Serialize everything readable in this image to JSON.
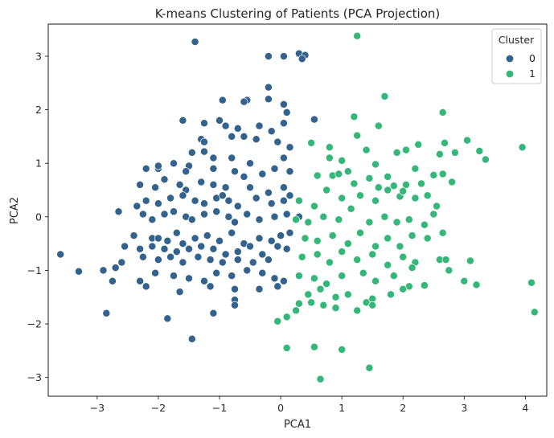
{
  "chart_data": {
    "type": "scatter",
    "title": "K-means Clustering of Patients (PCA Projection)",
    "xlabel": "PCA1",
    "ylabel": "PCA2",
    "xlim": [
      -3.8,
      4.35
    ],
    "ylim": [
      -3.35,
      3.6
    ],
    "xticks": [
      -3,
      -2,
      -1,
      0,
      1,
      2,
      3,
      4
    ],
    "yticks": [
      -3,
      -2,
      -1,
      0,
      1,
      2,
      3
    ],
    "xtick_labels": [
      "−3",
      "−2",
      "−1",
      "0",
      "1",
      "2",
      "3",
      "4"
    ],
    "ytick_labels": [
      "−3",
      "−2",
      "−1",
      "0",
      "1",
      "2",
      "3"
    ],
    "grid": false,
    "legend": {
      "title": "Cluster",
      "placement": "top-right"
    },
    "series": [
      {
        "name": "0",
        "color": "#33638d",
        "points": [
          [
            -1.4,
            3.27
          ],
          [
            0.3,
            3.05
          ],
          [
            -0.2,
            3.0
          ],
          [
            0.05,
            3.0
          ],
          [
            0.4,
            3.02
          ],
          [
            0.35,
            2.95
          ],
          [
            -0.55,
            2.18
          ],
          [
            -0.6,
            2.15
          ],
          [
            -0.95,
            2.18
          ],
          [
            -0.2,
            2.42
          ],
          [
            -0.2,
            2.2
          ],
          [
            0.05,
            2.1
          ],
          [
            0.1,
            1.95
          ],
          [
            0.55,
            1.82
          ],
          [
            0.05,
            1.75
          ],
          [
            -1.6,
            1.8
          ],
          [
            -1.25,
            1.75
          ],
          [
            -1.0,
            1.8
          ],
          [
            -0.9,
            1.7
          ],
          [
            -0.7,
            1.65
          ],
          [
            -0.35,
            1.7
          ],
          [
            -0.15,
            1.6
          ],
          [
            -1.3,
            1.45
          ],
          [
            -1.25,
            1.4
          ],
          [
            -0.8,
            1.5
          ],
          [
            -0.6,
            1.5
          ],
          [
            -0.4,
            1.45
          ],
          [
            -0.05,
            1.4
          ],
          [
            0.15,
            1.3
          ],
          [
            0.05,
            1.1
          ],
          [
            -1.45,
            1.2
          ],
          [
            -1.25,
            1.22
          ],
          [
            -1.1,
            1.1
          ],
          [
            -0.8,
            1.1
          ],
          [
            -0.5,
            1.0
          ],
          [
            -1.5,
            0.95
          ],
          [
            -2.2,
            0.9
          ],
          [
            -2.0,
            0.9
          ],
          [
            -2.0,
            0.95
          ],
          [
            -1.75,
            1.0
          ],
          [
            -1.55,
            0.85
          ],
          [
            -1.1,
            0.9
          ],
          [
            -0.75,
            0.85
          ],
          [
            -0.3,
            0.8
          ],
          [
            -0.1,
            0.9
          ],
          [
            0.15,
            0.85
          ],
          [
            -2.3,
            0.6
          ],
          [
            -2.05,
            0.55
          ],
          [
            -1.9,
            0.7
          ],
          [
            -1.65,
            0.6
          ],
          [
            -1.55,
            0.5
          ],
          [
            -1.3,
            0.65
          ],
          [
            -1.1,
            0.6
          ],
          [
            -0.9,
            0.55
          ],
          [
            -0.6,
            0.75
          ],
          [
            -0.5,
            0.55
          ],
          [
            -0.2,
            0.45
          ],
          [
            0.05,
            0.55
          ],
          [
            -2.35,
            0.2
          ],
          [
            -2.2,
            0.3
          ],
          [
            -2.0,
            0.25
          ],
          [
            -1.8,
            0.35
          ],
          [
            -1.6,
            0.4
          ],
          [
            -1.4,
            0.3
          ],
          [
            -1.25,
            0.25
          ],
          [
            -1.05,
            0.35
          ],
          [
            -0.95,
            0.4
          ],
          [
            -0.85,
            0.3
          ],
          [
            -0.7,
            0.2
          ],
          [
            -0.4,
            0.35
          ],
          [
            -0.15,
            0.25
          ],
          [
            0.05,
            0.3
          ],
          [
            0.15,
            0.4
          ],
          [
            -2.65,
            0.1
          ],
          [
            -2.25,
            0.05
          ],
          [
            -2.1,
            -0.05
          ],
          [
            -1.9,
            0.05
          ],
          [
            -1.75,
            0.1
          ],
          [
            -1.55,
            0.0
          ],
          [
            -1.45,
            -0.05
          ],
          [
            -1.25,
            0.05
          ],
          [
            -1.05,
            0.1
          ],
          [
            -0.85,
            0.0
          ],
          [
            -0.75,
            -0.1
          ],
          [
            -0.55,
            0.05
          ],
          [
            -0.35,
            -0.05
          ],
          [
            -0.1,
            0.0
          ],
          [
            0.1,
            0.05
          ],
          [
            0.3,
            0.0
          ],
          [
            -2.4,
            -0.35
          ],
          [
            -2.1,
            -0.4
          ],
          [
            -2.0,
            -0.4
          ],
          [
            -1.85,
            -0.45
          ],
          [
            -1.7,
            -0.3
          ],
          [
            -1.6,
            -0.5
          ],
          [
            -1.4,
            -0.4
          ],
          [
            -1.2,
            -0.35
          ],
          [
            -1.0,
            -0.45
          ],
          [
            -0.8,
            -0.3
          ],
          [
            -0.6,
            -0.5
          ],
          [
            -0.35,
            -0.4
          ],
          [
            -0.15,
            -0.45
          ],
          [
            0.0,
            -0.35
          ],
          [
            0.15,
            -0.3
          ],
          [
            -2.55,
            -0.55
          ],
          [
            -2.3,
            -0.6
          ],
          [
            -2.1,
            -0.55
          ],
          [
            -1.9,
            -0.6
          ],
          [
            -1.7,
            -0.65
          ],
          [
            -1.5,
            -0.6
          ],
          [
            -1.3,
            -0.55
          ],
          [
            -1.1,
            -0.6
          ],
          [
            -0.9,
            -0.7
          ],
          [
            -0.7,
            -0.65
          ],
          [
            -0.5,
            -0.55
          ],
          [
            -0.3,
            -0.7
          ],
          [
            -0.05,
            -0.55
          ],
          [
            0.1,
            -0.6
          ],
          [
            -3.6,
            -0.7
          ],
          [
            -3.3,
            -1.02
          ],
          [
            -2.9,
            -1.0
          ],
          [
            -2.7,
            -0.95
          ],
          [
            -2.6,
            -0.85
          ],
          [
            -2.25,
            -0.75
          ],
          [
            -2.0,
            -0.8
          ],
          [
            -1.8,
            -0.75
          ],
          [
            -1.6,
            -0.85
          ],
          [
            -1.35,
            -0.75
          ],
          [
            -1.15,
            -0.8
          ],
          [
            -0.95,
            -0.85
          ],
          [
            -0.7,
            -0.8
          ],
          [
            -0.45,
            -0.85
          ],
          [
            -0.2,
            -0.8
          ],
          [
            -2.75,
            -1.2
          ],
          [
            -2.3,
            -1.2
          ],
          [
            -2.05,
            -1.05
          ],
          [
            -1.75,
            -1.1
          ],
          [
            -1.5,
            -1.15
          ],
          [
            -1.25,
            -1.2
          ],
          [
            -1.05,
            -1.05
          ],
          [
            -0.8,
            -1.1
          ],
          [
            -0.55,
            -1.0
          ],
          [
            -0.3,
            -1.05
          ],
          [
            -0.1,
            -1.15
          ],
          [
            0.05,
            -1.2
          ],
          [
            -2.2,
            -1.3
          ],
          [
            -1.65,
            -1.4
          ],
          [
            -1.15,
            -1.3
          ],
          [
            -0.75,
            -1.35
          ],
          [
            -0.35,
            -1.35
          ],
          [
            -0.05,
            -1.3
          ],
          [
            -2.85,
            -1.8
          ],
          [
            -1.85,
            -1.9
          ],
          [
            -1.1,
            -1.8
          ],
          [
            -0.75,
            -1.55
          ],
          [
            -0.75,
            -1.65
          ],
          [
            -1.45,
            -2.28
          ]
        ]
      },
      {
        "name": "1",
        "color": "#35b779",
        "points": [
          [
            1.25,
            3.38
          ],
          [
            1.7,
            2.25
          ],
          [
            2.65,
            1.95
          ],
          [
            1.2,
            1.87
          ],
          [
            1.6,
            1.7
          ],
          [
            0.5,
            1.38
          ],
          [
            0.8,
            1.3
          ],
          [
            1.25,
            1.52
          ],
          [
            1.4,
            1.25
          ],
          [
            1.9,
            1.2
          ],
          [
            2.05,
            1.25
          ],
          [
            2.25,
            1.35
          ],
          [
            2.6,
            1.17
          ],
          [
            2.68,
            1.38
          ],
          [
            2.85,
            1.2
          ],
          [
            3.05,
            1.43
          ],
          [
            3.25,
            1.23
          ],
          [
            3.95,
            1.3
          ],
          [
            3.35,
            1.07
          ],
          [
            0.8,
            1.1
          ],
          [
            1.0,
            1.05
          ],
          [
            1.1,
            0.85
          ],
          [
            1.55,
            0.98
          ],
          [
            1.75,
            0.75
          ],
          [
            2.2,
            0.9
          ],
          [
            2.5,
            0.78
          ],
          [
            2.65,
            0.8
          ],
          [
            0.6,
            0.77
          ],
          [
            0.85,
            0.77
          ],
          [
            0.95,
            0.8
          ],
          [
            1.2,
            0.62
          ],
          [
            1.45,
            0.72
          ],
          [
            1.6,
            0.55
          ],
          [
            1.85,
            0.58
          ],
          [
            2.05,
            0.6
          ],
          [
            2.3,
            0.62
          ],
          [
            2.8,
            0.65
          ],
          [
            0.3,
            0.3
          ],
          [
            0.55,
            0.2
          ],
          [
            0.75,
            0.5
          ],
          [
            1.0,
            0.35
          ],
          [
            1.3,
            0.4
          ],
          [
            1.55,
            0.3
          ],
          [
            1.75,
            0.5
          ],
          [
            1.95,
            0.38
          ],
          [
            2.0,
            0.48
          ],
          [
            2.2,
            0.35
          ],
          [
            2.4,
            0.4
          ],
          [
            2.55,
            0.2
          ],
          [
            0.25,
            -0.05
          ],
          [
            0.45,
            -0.1
          ],
          [
            0.7,
            0.0
          ],
          [
            0.95,
            -0.05
          ],
          [
            1.15,
            0.15
          ],
          [
            1.45,
            -0.1
          ],
          [
            1.7,
            0.0
          ],
          [
            1.9,
            -0.1
          ],
          [
            2.1,
            -0.05
          ],
          [
            2.35,
            -0.15
          ],
          [
            2.5,
            0.05
          ],
          [
            0.4,
            -0.4
          ],
          [
            0.6,
            -0.45
          ],
          [
            0.85,
            -0.35
          ],
          [
            1.1,
            -0.5
          ],
          [
            1.3,
            -0.3
          ],
          [
            1.55,
            -0.55
          ],
          [
            1.75,
            -0.4
          ],
          [
            1.95,
            -0.55
          ],
          [
            2.15,
            -0.35
          ],
          [
            2.4,
            -0.4
          ],
          [
            2.65,
            -0.3
          ],
          [
            0.35,
            -0.75
          ],
          [
            0.6,
            -0.7
          ],
          [
            0.8,
            -0.85
          ],
          [
            1.0,
            -0.65
          ],
          [
            1.25,
            -0.8
          ],
          [
            1.5,
            -0.7
          ],
          [
            1.75,
            -0.9
          ],
          [
            2.0,
            -0.75
          ],
          [
            2.2,
            -0.85
          ],
          [
            2.6,
            -0.8
          ],
          [
            2.7,
            -0.8
          ],
          [
            3.1,
            -0.82
          ],
          [
            2.15,
            -0.95
          ],
          [
            0.3,
            -1.1
          ],
          [
            0.55,
            -1.15
          ],
          [
            0.75,
            -1.25
          ],
          [
            1.0,
            -1.1
          ],
          [
            1.35,
            -1.05
          ],
          [
            1.55,
            -1.2
          ],
          [
            1.85,
            -1.1
          ],
          [
            2.1,
            -1.3
          ],
          [
            2.35,
            -1.28
          ],
          [
            2.75,
            -1.0
          ],
          [
            3.0,
            -1.2
          ],
          [
            3.2,
            -1.27
          ],
          [
            0.45,
            -1.45
          ],
          [
            0.65,
            -1.35
          ],
          [
            0.9,
            -1.5
          ],
          [
            1.1,
            -1.45
          ],
          [
            1.4,
            -1.6
          ],
          [
            1.5,
            -1.53
          ],
          [
            1.8,
            -1.45
          ],
          [
            2.0,
            -1.35
          ],
          [
            0.3,
            -1.62
          ],
          [
            0.5,
            -1.6
          ],
          [
            0.7,
            -1.65
          ],
          [
            0.9,
            -1.7
          ],
          [
            1.25,
            -1.75
          ],
          [
            1.5,
            -1.65
          ],
          [
            -0.05,
            -1.95
          ],
          [
            0.1,
            -1.87
          ],
          [
            0.25,
            -1.75
          ],
          [
            0.1,
            -2.45
          ],
          [
            0.55,
            -2.43
          ],
          [
            1.0,
            -2.48
          ],
          [
            1.45,
            -2.82
          ],
          [
            0.65,
            -3.03
          ],
          [
            4.1,
            -1.23
          ],
          [
            4.15,
            -1.78
          ]
        ]
      }
    ]
  }
}
